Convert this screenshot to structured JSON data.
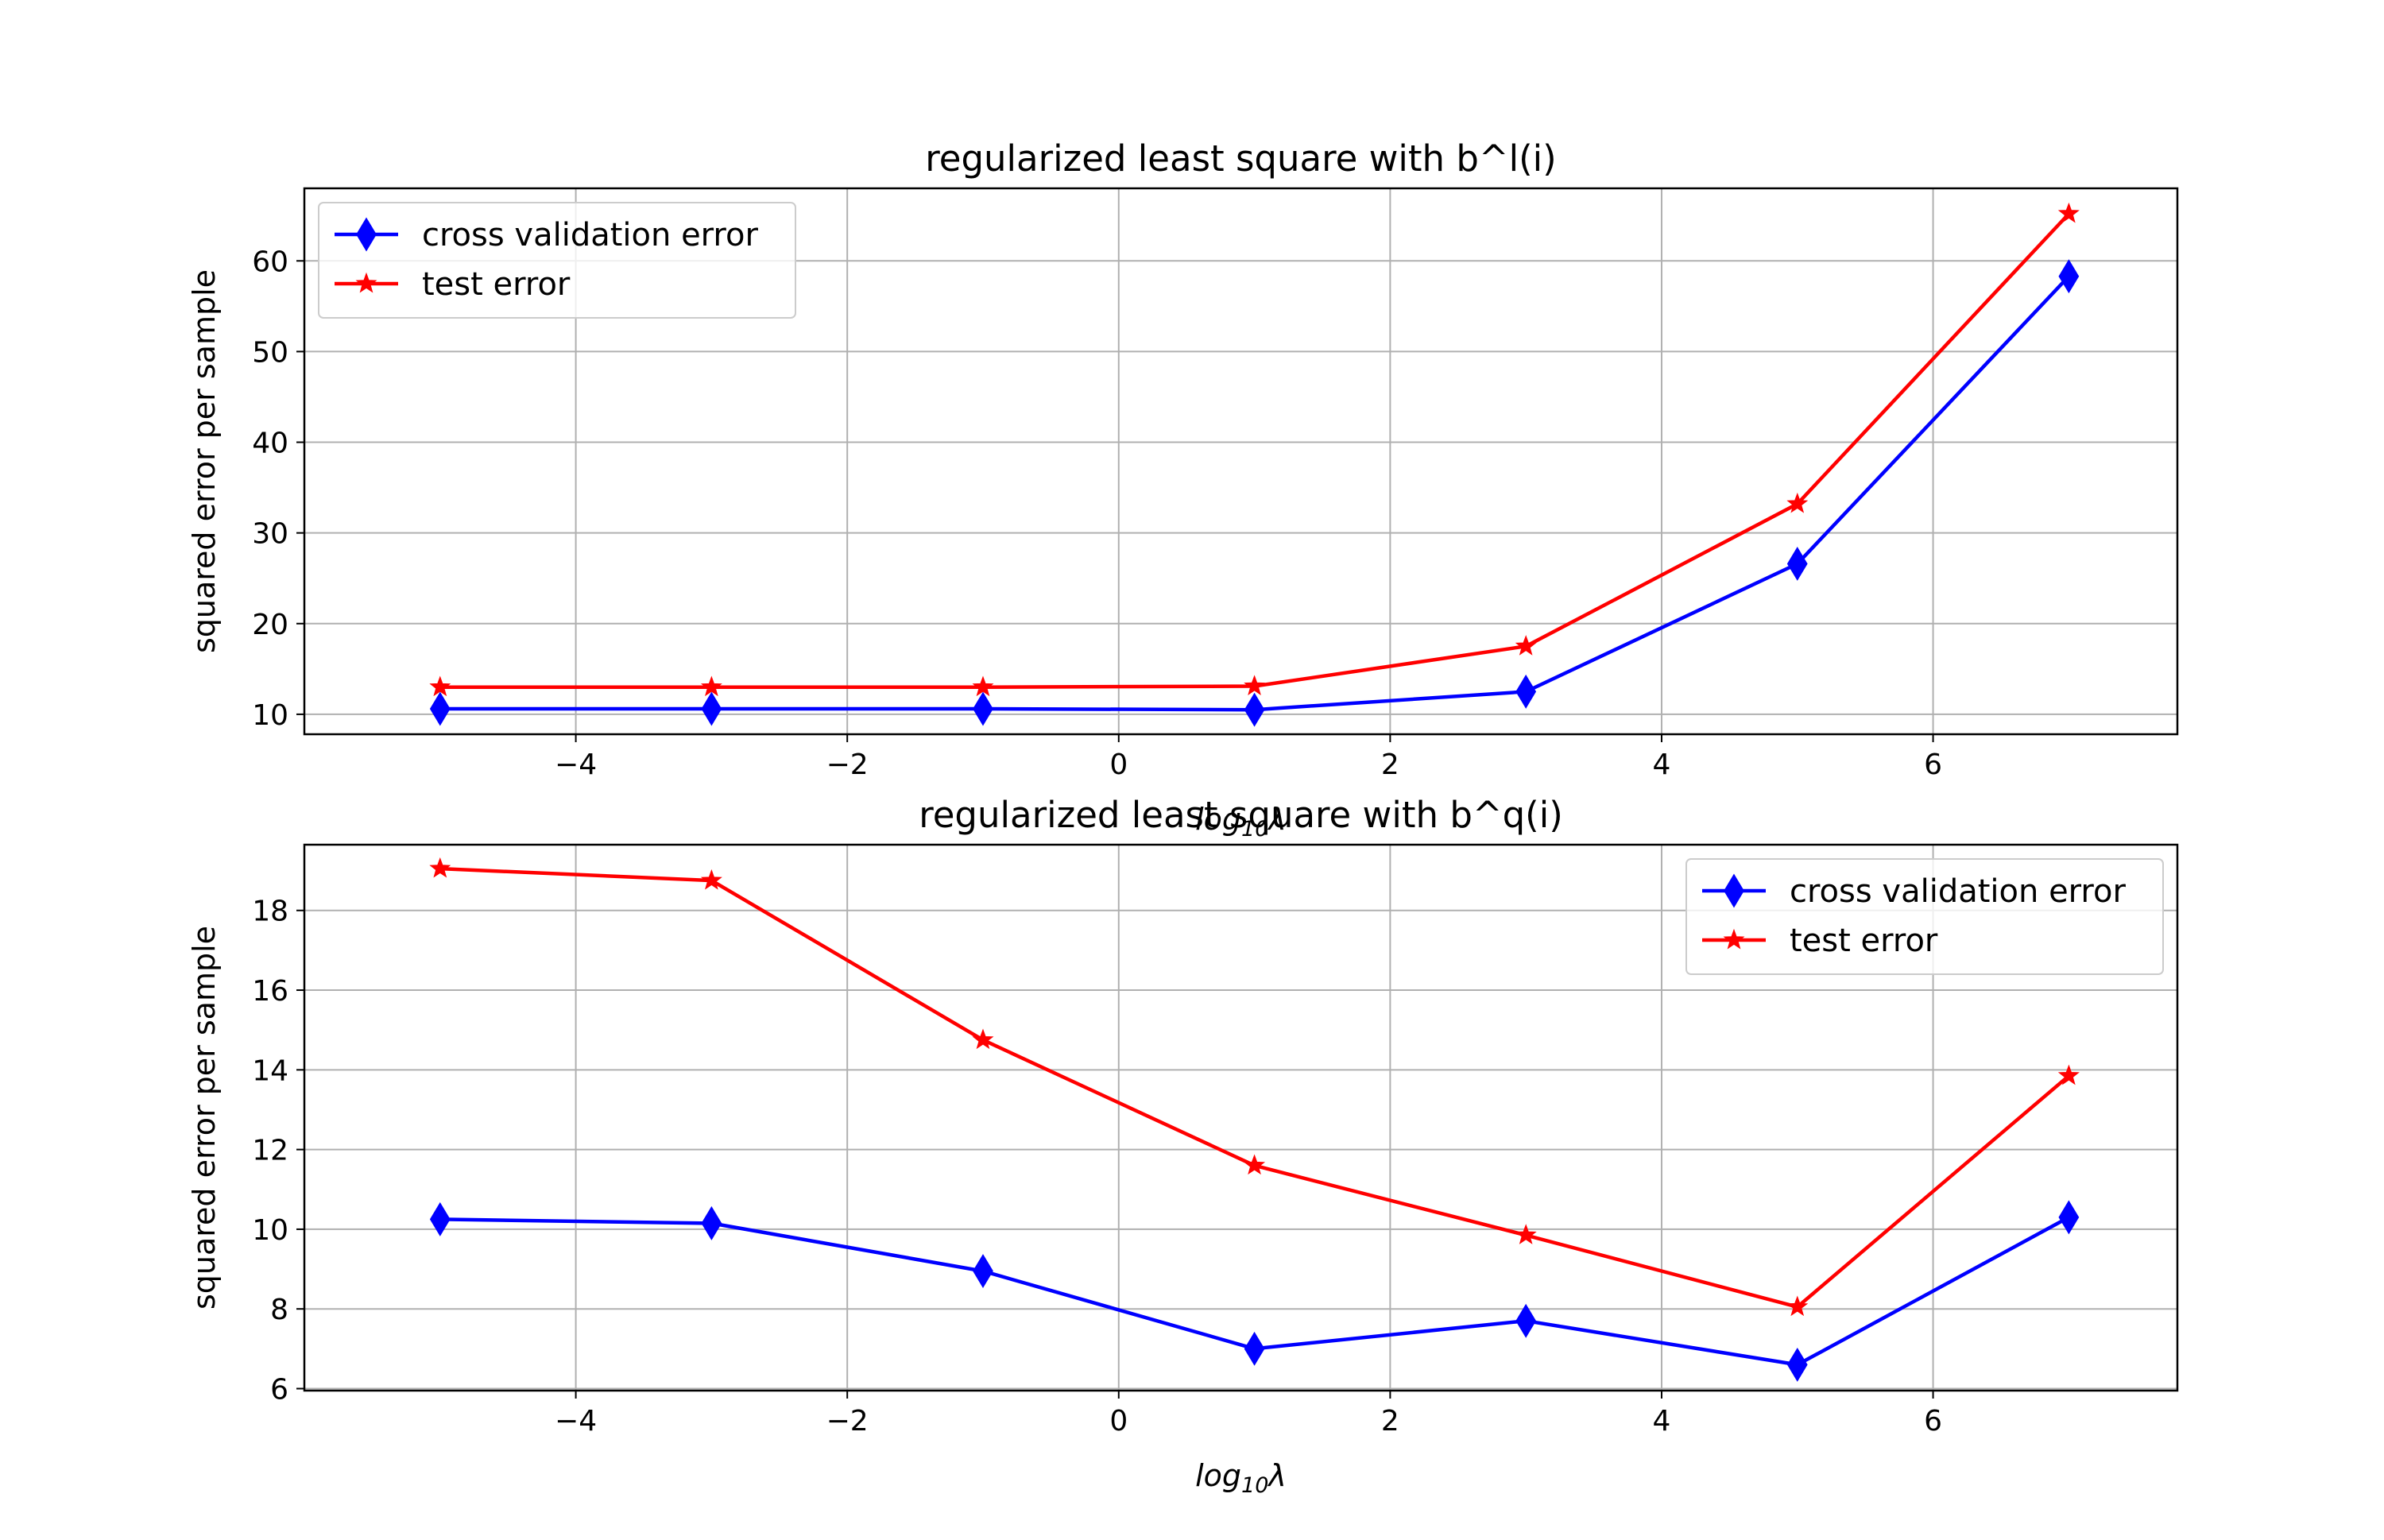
{
  "chart_data": [
    {
      "type": "line",
      "title": "regularized least square with b^l(i)",
      "xlabel": "log10λ",
      "ylabel": "squared error per sample",
      "xlim": [
        -6,
        7.8
      ],
      "ylim": [
        7.8,
        68
      ],
      "xticks": [
        -4,
        -2,
        0,
        2,
        4,
        6
      ],
      "yticks": [
        10,
        20,
        30,
        40,
        50,
        60
      ],
      "grid": true,
      "legend_position": "upper left",
      "x": [
        -5,
        -3,
        -1,
        1,
        3,
        5,
        7
      ],
      "series": [
        {
          "name": "cross validation error",
          "color": "#0000ff",
          "marker": "diamond",
          "values": [
            10.6,
            10.6,
            10.6,
            10.5,
            12.5,
            26.6,
            58.3
          ]
        },
        {
          "name": "test error",
          "color": "#ff0000",
          "marker": "star",
          "values": [
            13.0,
            13.0,
            13.0,
            13.1,
            17.5,
            33.2,
            65.2
          ]
        }
      ]
    },
    {
      "type": "line",
      "title": "regularized least square with b^q(i)",
      "xlabel": "log10λ",
      "ylabel": "squared error per sample",
      "xlim": [
        -6,
        7.8
      ],
      "ylim": [
        5.95,
        19.65
      ],
      "xticks": [
        -4,
        -2,
        0,
        2,
        4,
        6
      ],
      "yticks": [
        6,
        8,
        10,
        12,
        14,
        16,
        18
      ],
      "grid": true,
      "legend_position": "upper right",
      "x": [
        -5,
        -3,
        -1,
        1,
        3,
        5,
        7
      ],
      "series": [
        {
          "name": "cross validation error",
          "color": "#0000ff",
          "marker": "diamond",
          "values": [
            10.25,
            10.15,
            8.95,
            7.0,
            7.7,
            6.6,
            10.3
          ]
        },
        {
          "name": "test error",
          "color": "#ff0000",
          "marker": "star",
          "values": [
            19.05,
            18.75,
            14.75,
            11.6,
            9.85,
            8.05,
            13.85
          ]
        }
      ]
    }
  ]
}
